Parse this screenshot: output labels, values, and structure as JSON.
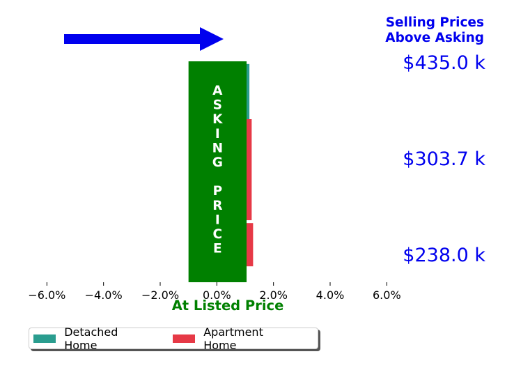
{
  "chart_data": {
    "type": "bar",
    "orientation": "horizontal",
    "header": [
      "Selling Prices",
      "Above Asking"
    ],
    "xlabel": "At Listed Price",
    "xlim": [
      -0.065,
      0.07
    ],
    "x_ticks": [
      "−6.0%",
      "−4.0%",
      "−2.0%",
      "0.0%",
      "2.0%",
      "4.0%",
      "6.0%"
    ],
    "x_tick_values": [
      -0.06,
      -0.04,
      -0.02,
      0.0,
      0.02,
      0.04,
      0.06
    ],
    "categories": [
      "$435.0 k",
      "$303.7 k",
      "$238.0 k"
    ],
    "series": [
      {
        "name": "Detached Home",
        "color": "#2a9d8f",
        "values": [
          0.0115,
          0.0,
          0.0
        ]
      },
      {
        "name": "Apartment Home",
        "color": "#e63946",
        "values": [
          0.0,
          0.0123,
          0.0128
        ]
      }
    ],
    "banner": {
      "letters": [
        "A",
        "S",
        "K",
        "I",
        "N",
        "G",
        "",
        "P",
        "R",
        "I",
        "C",
        "E"
      ],
      "range": [
        -0.01,
        0.0105
      ],
      "color": "#008000"
    },
    "arrow_color": "#0000ee",
    "grid": false,
    "legend_position": "bottom-left"
  }
}
